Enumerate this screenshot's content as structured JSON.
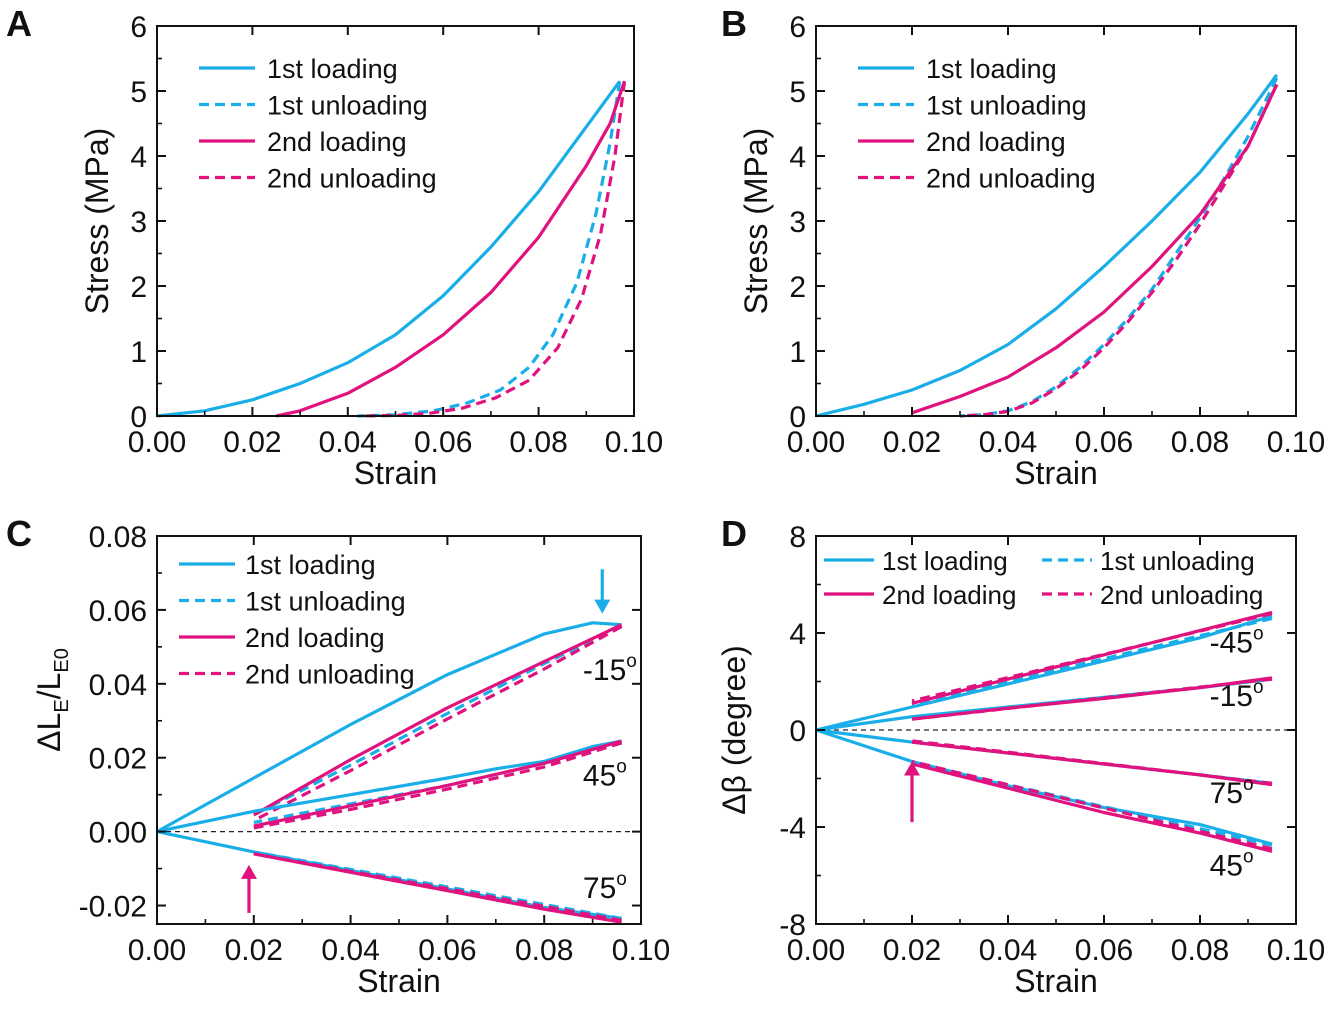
{
  "colors": {
    "cyan": "#1AAEE8",
    "magenta": "#E0127E",
    "axis": "#111111"
  },
  "chart_data": [
    {
      "panel": "A",
      "type": "line",
      "xlabel": "Strain",
      "ylabel": "Stress (MPa)",
      "xlim": [
        0,
        0.1
      ],
      "ylim": [
        0,
        6
      ],
      "xticks": [
        "0.00",
        "0.02",
        "0.04",
        "0.06",
        "0.08",
        "0.10"
      ],
      "yticks": [
        "0",
        "1",
        "2",
        "3",
        "4",
        "5",
        "6"
      ],
      "legend_position": "top-left",
      "series": [
        {
          "name": "1st loading",
          "color": "cyan",
          "dash": false,
          "x": [
            0,
            0.01,
            0.02,
            0.03,
            0.04,
            0.05,
            0.06,
            0.07,
            0.08,
            0.09,
            0.097
          ],
          "y": [
            0,
            0.08,
            0.25,
            0.5,
            0.82,
            1.25,
            1.85,
            2.6,
            3.45,
            4.45,
            5.15
          ]
        },
        {
          "name": "1st unloading",
          "color": "cyan",
          "dash": true,
          "x": [
            0.097,
            0.095,
            0.092,
            0.088,
            0.083,
            0.078,
            0.072,
            0.065,
            0.058,
            0.05,
            0.042
          ],
          "y": [
            5.15,
            4.2,
            3.1,
            2.05,
            1.25,
            0.75,
            0.4,
            0.2,
            0.08,
            0.02,
            0
          ]
        },
        {
          "name": "2nd loading",
          "color": "magenta",
          "dash": false,
          "x": [
            0.025,
            0.03,
            0.04,
            0.05,
            0.06,
            0.07,
            0.08,
            0.09,
            0.095,
            0.098
          ],
          "y": [
            0,
            0.08,
            0.35,
            0.75,
            1.25,
            1.9,
            2.75,
            3.85,
            4.5,
            5.15
          ]
        },
        {
          "name": "2nd unloading",
          "color": "magenta",
          "dash": true,
          "x": [
            0.098,
            0.096,
            0.093,
            0.089,
            0.084,
            0.078,
            0.071,
            0.064,
            0.057,
            0.05,
            0.043
          ],
          "y": [
            5.15,
            4.0,
            2.8,
            1.8,
            1.05,
            0.55,
            0.28,
            0.12,
            0.04,
            0.01,
            0
          ]
        }
      ]
    },
    {
      "panel": "B",
      "type": "line",
      "xlabel": "Strain",
      "ylabel": "Stress (MPa)",
      "xlim": [
        0,
        0.1
      ],
      "ylim": [
        0,
        6
      ],
      "xticks": [
        "0.00",
        "0.02",
        "0.04",
        "0.06",
        "0.08",
        "0.10"
      ],
      "yticks": [
        "0",
        "1",
        "2",
        "3",
        "4",
        "5",
        "6"
      ],
      "legend_position": "top-left",
      "series": [
        {
          "name": "1st loading",
          "color": "cyan",
          "dash": false,
          "x": [
            0,
            0.01,
            0.02,
            0.03,
            0.04,
            0.05,
            0.06,
            0.07,
            0.08,
            0.09,
            0.096
          ],
          "y": [
            0,
            0.18,
            0.4,
            0.7,
            1.1,
            1.65,
            2.3,
            3.0,
            3.75,
            4.65,
            5.25
          ]
        },
        {
          "name": "1st unloading",
          "color": "cyan",
          "dash": true,
          "x": [
            0.096,
            0.09,
            0.085,
            0.08,
            0.075,
            0.07,
            0.065,
            0.06,
            0.055,
            0.05,
            0.045,
            0.04,
            0.035,
            0.03
          ],
          "y": [
            5.2,
            4.3,
            3.65,
            3.05,
            2.5,
            1.95,
            1.5,
            1.1,
            0.75,
            0.45,
            0.22,
            0.08,
            0.02,
            0
          ]
        },
        {
          "name": "2nd loading",
          "color": "magenta",
          "dash": false,
          "x": [
            0.02,
            0.03,
            0.04,
            0.05,
            0.06,
            0.07,
            0.08,
            0.09,
            0.096
          ],
          "y": [
            0.05,
            0.3,
            0.6,
            1.05,
            1.6,
            2.3,
            3.1,
            4.15,
            5.1
          ]
        },
        {
          "name": "2nd unloading",
          "color": "magenta",
          "dash": true,
          "x": [
            0.096,
            0.09,
            0.085,
            0.08,
            0.075,
            0.07,
            0.065,
            0.06,
            0.055,
            0.05,
            0.045,
            0.04,
            0.035,
            0.03
          ],
          "y": [
            5.1,
            4.15,
            3.55,
            2.95,
            2.4,
            1.9,
            1.45,
            1.05,
            0.7,
            0.42,
            0.2,
            0.07,
            0.02,
            0
          ]
        }
      ]
    },
    {
      "panel": "C",
      "type": "line",
      "xlabel": "Strain",
      "ylabel_main": "ΔL",
      "ylabel_sub1": "E",
      "ylabel_mid": "/L",
      "ylabel_sub2": "E0",
      "xlim": [
        0,
        0.1
      ],
      "ylim": [
        -0.025,
        0.08
      ],
      "xticks": [
        "0.00",
        "0.02",
        "0.04",
        "0.06",
        "0.08",
        "0.10"
      ],
      "yticks": [
        "-0.02",
        "0.00",
        "0.02",
        "0.04",
        "0.06",
        "0.08"
      ],
      "ytick_values": [
        -0.02,
        0,
        0.02,
        0.04,
        0.06,
        0.08
      ],
      "legend_position": "top-left",
      "dashed_zero_line": true,
      "angle_labels": [
        {
          "base": "-15",
          "sup": "o",
          "x": 0.088,
          "y": 0.041
        },
        {
          "base": "45",
          "sup": "o",
          "x": 0.088,
          "y": 0.0125
        },
        {
          "base": "75",
          "sup": "o",
          "x": 0.088,
          "y": -0.018
        }
      ],
      "arrows": [
        {
          "color": "cyan",
          "x": 0.092,
          "y_from": 0.071,
          "y_to": 0.059
        },
        {
          "color": "magenta",
          "x": 0.019,
          "y_from": -0.022,
          "y_to": -0.009
        }
      ],
      "legend": [
        {
          "name": "1st loading",
          "color": "cyan",
          "dash": false
        },
        {
          "name": "1st unloading",
          "color": "cyan",
          "dash": true
        },
        {
          "name": "2nd loading",
          "color": "magenta",
          "dash": false
        },
        {
          "name": "2nd unloading",
          "color": "magenta",
          "dash": true
        }
      ],
      "series": [
        {
          "group": "-15",
          "color": "cyan",
          "dash": false,
          "x": [
            0,
            0.02,
            0.04,
            0.06,
            0.08,
            0.09,
            0.096
          ],
          "y": [
            0,
            0.0145,
            0.029,
            0.0425,
            0.0535,
            0.0565,
            0.056
          ]
        },
        {
          "group": "-15",
          "color": "cyan",
          "dash": true,
          "x": [
            0.096,
            0.08,
            0.06,
            0.04,
            0.02
          ],
          "y": [
            0.0555,
            0.0455,
            0.032,
            0.018,
            0.0045
          ]
        },
        {
          "group": "-15",
          "color": "magenta",
          "dash": false,
          "x": [
            0.02,
            0.04,
            0.06,
            0.08,
            0.096
          ],
          "y": [
            0.0045,
            0.0195,
            0.0335,
            0.046,
            0.056
          ]
        },
        {
          "group": "-15",
          "color": "magenta",
          "dash": true,
          "x": [
            0.096,
            0.08,
            0.06,
            0.04,
            0.02
          ],
          "y": [
            0.0555,
            0.044,
            0.0305,
            0.0165,
            0.003
          ]
        },
        {
          "group": "45",
          "color": "cyan",
          "dash": false,
          "x": [
            0,
            0.02,
            0.04,
            0.06,
            0.07,
            0.08,
            0.09,
            0.096
          ],
          "y": [
            0,
            0.0055,
            0.01,
            0.0145,
            0.017,
            0.019,
            0.023,
            0.0245
          ]
        },
        {
          "group": "45",
          "color": "cyan",
          "dash": true,
          "x": [
            0.096,
            0.08,
            0.06,
            0.04,
            0.02
          ],
          "y": [
            0.024,
            0.0185,
            0.0125,
            0.0075,
            0.0025
          ]
        },
        {
          "group": "45",
          "color": "magenta",
          "dash": false,
          "x": [
            0.02,
            0.04,
            0.06,
            0.08,
            0.096
          ],
          "y": [
            0.0015,
            0.007,
            0.0125,
            0.0185,
            0.0245
          ]
        },
        {
          "group": "45",
          "color": "magenta",
          "dash": true,
          "x": [
            0.096,
            0.08,
            0.06,
            0.04,
            0.02
          ],
          "y": [
            0.024,
            0.0175,
            0.0115,
            0.006,
            0.001
          ]
        },
        {
          "group": "75",
          "color": "cyan",
          "dash": false,
          "x": [
            0,
            0.02,
            0.04,
            0.06,
            0.08,
            0.096
          ],
          "y": [
            0,
            -0.0055,
            -0.0105,
            -0.0155,
            -0.0205,
            -0.0235
          ]
        },
        {
          "group": "75",
          "color": "cyan",
          "dash": true,
          "x": [
            0.096,
            0.02
          ],
          "y": [
            -0.0235,
            -0.0055
          ]
        },
        {
          "group": "75",
          "color": "magenta",
          "dash": false,
          "x": [
            0.02,
            0.04,
            0.06,
            0.08,
            0.096
          ],
          "y": [
            -0.006,
            -0.011,
            -0.016,
            -0.021,
            -0.0245
          ]
        },
        {
          "group": "75",
          "color": "magenta",
          "dash": true,
          "x": [
            0.096,
            0.02
          ],
          "y": [
            -0.024,
            -0.006
          ]
        }
      ]
    },
    {
      "panel": "D",
      "type": "line",
      "xlabel": "Strain",
      "ylabel": "Δβ (degree)",
      "xlim": [
        0,
        0.1
      ],
      "ylim": [
        -8,
        8
      ],
      "xticks": [
        "0.00",
        "0.02",
        "0.04",
        "0.06",
        "0.08",
        "0.10"
      ],
      "yticks": [
        "-8",
        "-4",
        "0",
        "4",
        "8"
      ],
      "ytick_values": [
        -8,
        -4,
        0,
        4,
        8
      ],
      "legend_position": "top",
      "dashed_zero_line": true,
      "angle_labels": [
        {
          "base": "-45",
          "sup": "o",
          "x": 0.082,
          "y": 3.2
        },
        {
          "base": "-15",
          "sup": "o",
          "x": 0.082,
          "y": 1.0
        },
        {
          "base": "75",
          "sup": "o",
          "x": 0.082,
          "y": -3.0
        },
        {
          "base": "45",
          "sup": "o",
          "x": 0.082,
          "y": -6.0
        }
      ],
      "arrows": [
        {
          "color": "magenta",
          "x": 0.02,
          "y_from": -3.8,
          "y_to": -1.3
        }
      ],
      "legend": [
        {
          "name": "1st loading",
          "color": "cyan",
          "dash": false
        },
        {
          "name": "1st unloading",
          "color": "cyan",
          "dash": true
        },
        {
          "name": "2nd loading",
          "color": "magenta",
          "dash": false
        },
        {
          "name": "2nd unloading",
          "color": "magenta",
          "dash": true
        }
      ],
      "series": [
        {
          "group": "-45",
          "color": "cyan",
          "dash": false,
          "x": [
            0,
            0.02,
            0.04,
            0.06,
            0.08,
            0.095
          ],
          "y": [
            0,
            0.95,
            1.9,
            2.85,
            3.8,
            4.7
          ]
        },
        {
          "group": "-45",
          "color": "cyan",
          "dash": true,
          "x": [
            0.095,
            0.02
          ],
          "y": [
            4.6,
            1.05
          ]
        },
        {
          "group": "-45",
          "color": "magenta",
          "dash": false,
          "x": [
            0.02,
            0.04,
            0.06,
            0.08,
            0.095
          ],
          "y": [
            1.1,
            2.1,
            3.1,
            4.1,
            4.85
          ]
        },
        {
          "group": "-45",
          "color": "magenta",
          "dash": true,
          "x": [
            0.095,
            0.02
          ],
          "y": [
            4.8,
            1.2
          ]
        },
        {
          "group": "-15",
          "color": "cyan",
          "dash": false,
          "x": [
            0,
            0.02,
            0.04,
            0.06,
            0.08,
            0.095
          ],
          "y": [
            0,
            0.55,
            0.95,
            1.35,
            1.75,
            2.1
          ]
        },
        {
          "group": "-15",
          "color": "magenta",
          "dash": false,
          "x": [
            0.02,
            0.04,
            0.06,
            0.08,
            0.095
          ],
          "y": [
            0.45,
            0.9,
            1.3,
            1.75,
            2.15
          ]
        },
        {
          "group": "-15",
          "color": "magenta",
          "dash": true,
          "x": [
            0.095,
            0.02
          ],
          "y": [
            2.1,
            0.45
          ]
        },
        {
          "group": "75",
          "color": "cyan",
          "dash": false,
          "x": [
            0,
            0.02,
            0.04,
            0.06,
            0.08,
            0.095
          ],
          "y": [
            0,
            -0.5,
            -0.95,
            -1.4,
            -1.85,
            -2.2
          ]
        },
        {
          "group": "75",
          "color": "magenta",
          "dash": false,
          "x": [
            0.02,
            0.04,
            0.06,
            0.08,
            0.095
          ],
          "y": [
            -0.5,
            -0.95,
            -1.4,
            -1.85,
            -2.25
          ]
        },
        {
          "group": "75",
          "color": "magenta",
          "dash": true,
          "x": [
            0.095,
            0.02
          ],
          "y": [
            -2.2,
            -0.45
          ]
        },
        {
          "group": "45",
          "color": "cyan",
          "dash": false,
          "x": [
            0,
            0.02,
            0.04,
            0.06,
            0.07,
            0.08,
            0.095
          ],
          "y": [
            0,
            -1.3,
            -2.3,
            -3.2,
            -3.55,
            -3.9,
            -4.7
          ]
        },
        {
          "group": "45",
          "color": "cyan",
          "dash": true,
          "x": [
            0.095,
            0.02
          ],
          "y": [
            -4.75,
            -1.35
          ]
        },
        {
          "group": "45",
          "color": "magenta",
          "dash": false,
          "x": [
            0.02,
            0.04,
            0.06,
            0.08,
            0.095
          ],
          "y": [
            -1.4,
            -2.4,
            -3.4,
            -4.25,
            -5.0
          ]
        },
        {
          "group": "45",
          "color": "magenta",
          "dash": true,
          "x": [
            0.095,
            0.02
          ],
          "y": [
            -4.9,
            -1.3
          ]
        }
      ]
    }
  ]
}
